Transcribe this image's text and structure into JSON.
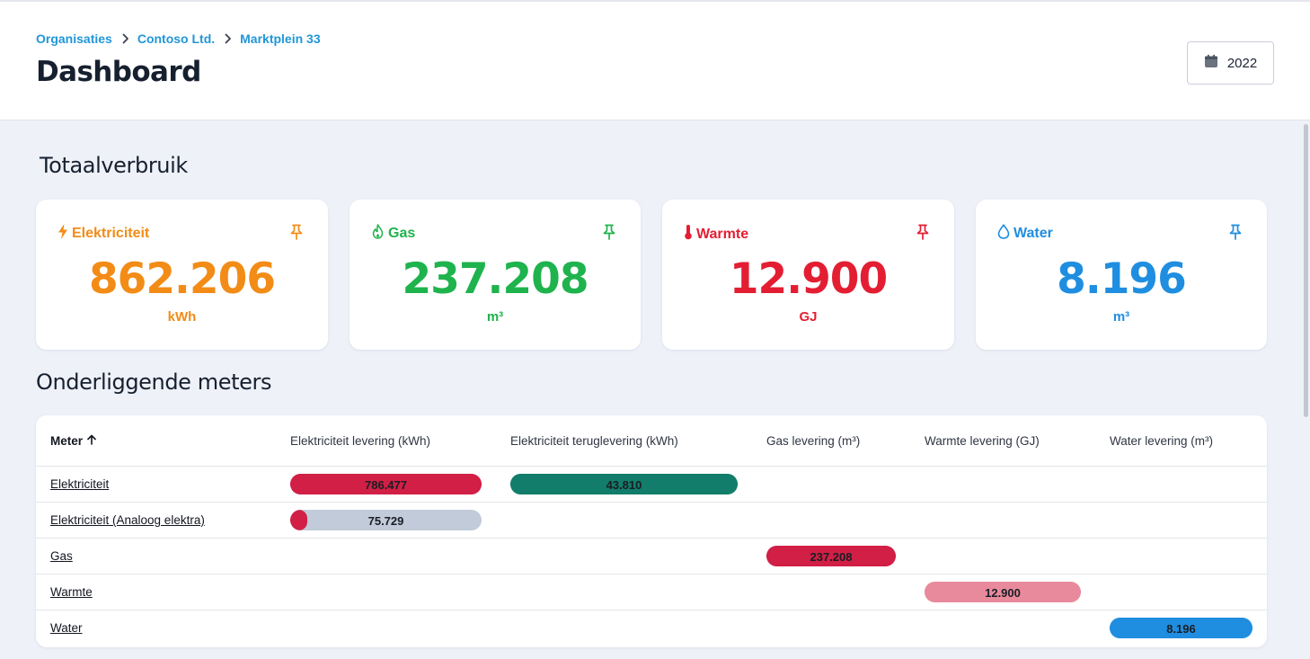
{
  "breadcrumb": [
    "Organisaties",
    "Contoso Ltd.",
    "Marktplein 33"
  ],
  "page_title": "Dashboard",
  "year_button": {
    "label": "2022",
    "icon": "calendar-icon"
  },
  "sections": {
    "total": "Totaalverbruik",
    "meters": "Onderliggende meters"
  },
  "cards": [
    {
      "label": "Elektriciteit",
      "value": "862.206",
      "unit": "kWh",
      "color": "#f28c17",
      "icon": "lightning-icon"
    },
    {
      "label": "Gas",
      "value": "237.208",
      "unit": "m³",
      "color": "#1fb34d",
      "icon": "flame-icon"
    },
    {
      "label": "Warmte",
      "value": "12.900",
      "unit": "GJ",
      "color": "#e31e33",
      "icon": "thermometer-icon"
    },
    {
      "label": "Water",
      "value": "8.196",
      "unit": "m³",
      "color": "#1f8ee0",
      "icon": "droplet-icon"
    }
  ],
  "table": {
    "headers": [
      "Meter",
      "Elektriciteit levering (kWh)",
      "Elektriciteit teruglevering (kWh)",
      "Gas levering (m³)",
      "Warmte levering (GJ)",
      "Water levering (m³)"
    ],
    "sort_icon": "arrow-up-icon",
    "rows": [
      {
        "name": "Elektriciteit",
        "bars": [
          {
            "col": 1,
            "value": "786.477",
            "fill": 1.0,
            "color": "#d11f45"
          },
          {
            "col": 2,
            "value": "43.810",
            "fill": 1.0,
            "color": "#117d6a"
          }
        ]
      },
      {
        "name": "Elektriciteit (Analoog elektra)",
        "bars": [
          {
            "col": 1,
            "value": "75.729",
            "fill": 0.09,
            "color": "#d11f45",
            "track": "#c1cbd9"
          }
        ]
      },
      {
        "name": "Gas",
        "bars": [
          {
            "col": 3,
            "value": "237.208",
            "fill": 1.0,
            "color": "#d11f45"
          }
        ]
      },
      {
        "name": "Warmte",
        "bars": [
          {
            "col": 4,
            "value": "12.900",
            "fill": 1.0,
            "color": "#e88a9c"
          }
        ]
      },
      {
        "name": "Water",
        "bars": [
          {
            "col": 5,
            "value": "8.196",
            "fill": 1.0,
            "color": "#1f8ee0"
          }
        ]
      }
    ]
  }
}
